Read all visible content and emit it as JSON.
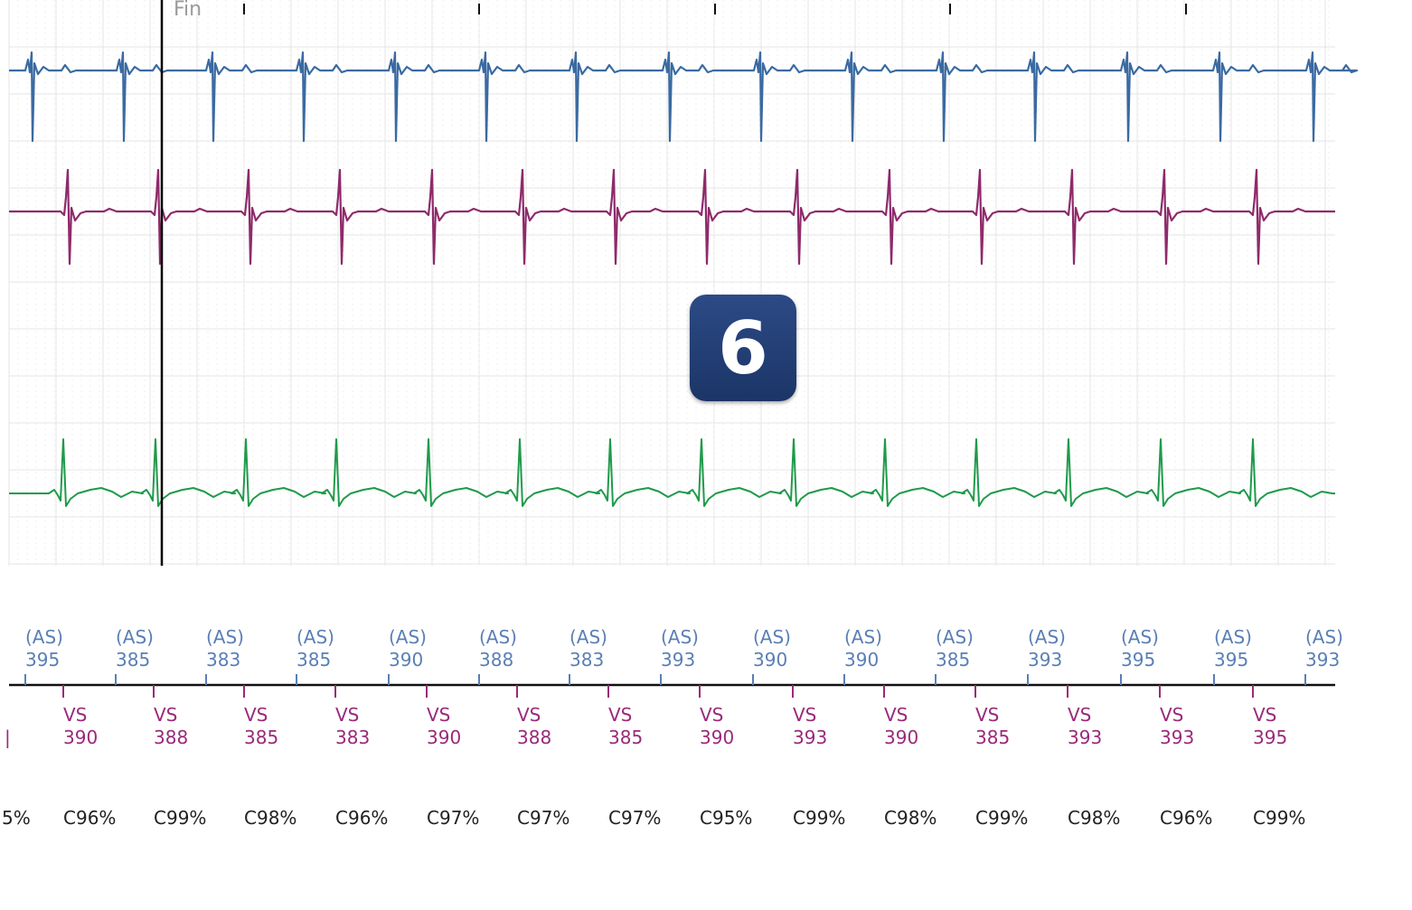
{
  "marker_label": "Fin",
  "badge": {
    "number": "6"
  },
  "colors": {
    "lead_top": "#3a6aa2",
    "lead_middle": "#8e2a6b",
    "lead_bottom": "#1f9a4a",
    "atrial_marker": "#5a7fb5",
    "ventricular_marker": "#9a2a7a",
    "grid": "#e4e4e4",
    "badge": "#1e3a6e"
  },
  "atrial_events": [
    {
      "label": "(AS)",
      "interval": "395"
    },
    {
      "label": "(AS)",
      "interval": "385"
    },
    {
      "label": "(AS)",
      "interval": "383"
    },
    {
      "label": "(AS)",
      "interval": "385"
    },
    {
      "label": "(AS)",
      "interval": "390"
    },
    {
      "label": "(AS)",
      "interval": "388"
    },
    {
      "label": "(AS)",
      "interval": "383"
    },
    {
      "label": "(AS)",
      "interval": "393"
    },
    {
      "label": "(AS)",
      "interval": "390"
    },
    {
      "label": "(AS)",
      "interval": "390"
    },
    {
      "label": "(AS)",
      "interval": "385"
    },
    {
      "label": "(AS)",
      "interval": "393"
    },
    {
      "label": "(AS)",
      "interval": "395"
    },
    {
      "label": "(AS)",
      "interval": "395"
    },
    {
      "label": "(AS)",
      "interval": "393"
    }
  ],
  "ventricular_events": [
    {
      "label": "VS",
      "interval": "390"
    },
    {
      "label": "VS",
      "interval": "388"
    },
    {
      "label": "VS",
      "interval": "385"
    },
    {
      "label": "VS",
      "interval": "383"
    },
    {
      "label": "VS",
      "interval": "390"
    },
    {
      "label": "VS",
      "interval": "388"
    },
    {
      "label": "VS",
      "interval": "385"
    },
    {
      "label": "VS",
      "interval": "390"
    },
    {
      "label": "VS",
      "interval": "393"
    },
    {
      "label": "VS",
      "interval": "390"
    },
    {
      "label": "VS",
      "interval": "385"
    },
    {
      "label": "VS",
      "interval": "393"
    },
    {
      "label": "VS",
      "interval": "393"
    },
    {
      "label": "VS",
      "interval": "395"
    }
  ],
  "capture_leading_partial": "5%",
  "capture": [
    "C96%",
    "C99%",
    "C98%",
    "C96%",
    "C97%",
    "C97%",
    "C97%",
    "C95%",
    "C99%",
    "C98%",
    "C99%",
    "C98%",
    "C96%",
    "C99%"
  ]
}
